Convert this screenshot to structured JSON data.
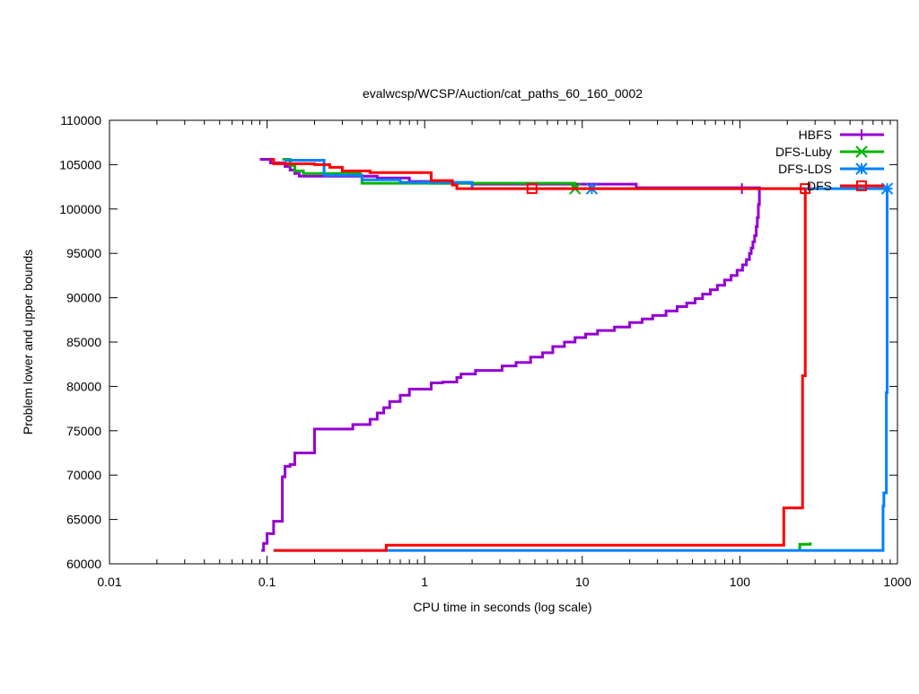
{
  "chart_data": {
    "type": "line",
    "title": "evalwcsp/WCSP/Auction/cat_paths_60_160_0002",
    "xlabel": "CPU time in seconds (log scale)",
    "ylabel": "Problem lower and upper bounds",
    "xscale": "log",
    "xlim": [
      0.01,
      1000
    ],
    "ylim": [
      60000,
      110000
    ],
    "xticks": [
      "0.01",
      "0.1",
      "1",
      "10",
      "100",
      "1000"
    ],
    "yticks": [
      "60000",
      "65000",
      "70000",
      "75000",
      "80000",
      "85000",
      "90000",
      "95000",
      "100000",
      "105000",
      "110000"
    ],
    "legend_position": "top-right",
    "grid": false,
    "series": [
      {
        "name": "HBFS",
        "color": "#9400d3",
        "marker": "plus",
        "upper": [
          [
            0.09,
            105600
          ],
          [
            0.105,
            105200
          ],
          [
            0.13,
            104800
          ],
          [
            0.14,
            104400
          ],
          [
            0.15,
            104000
          ],
          [
            0.16,
            103700
          ],
          [
            0.5,
            103500
          ],
          [
            0.8,
            103100
          ],
          [
            1.1,
            102900
          ],
          [
            2.0,
            102800
          ],
          [
            22,
            102400
          ],
          [
            133,
            102300
          ]
        ],
        "lower": [
          [
            0.092,
            61500
          ],
          [
            0.095,
            62300
          ],
          [
            0.1,
            63400
          ],
          [
            0.11,
            64800
          ],
          [
            0.125,
            69800
          ],
          [
            0.13,
            71000
          ],
          [
            0.14,
            71200
          ],
          [
            0.15,
            72500
          ],
          [
            0.2,
            75200
          ],
          [
            0.35,
            75700
          ],
          [
            0.45,
            76300
          ],
          [
            0.5,
            77000
          ],
          [
            0.55,
            77600
          ],
          [
            0.6,
            78300
          ],
          [
            0.7,
            79000
          ],
          [
            0.8,
            79700
          ],
          [
            1.1,
            80400
          ],
          [
            1.3,
            80500
          ],
          [
            1.6,
            81000
          ],
          [
            1.7,
            81400
          ],
          [
            2.1,
            81800
          ],
          [
            3.1,
            82300
          ],
          [
            3.8,
            82700
          ],
          [
            4.7,
            83300
          ],
          [
            5.6,
            83800
          ],
          [
            6.5,
            84500
          ],
          [
            7.7,
            85000
          ],
          [
            9.0,
            85500
          ],
          [
            10.5,
            85900
          ],
          [
            12.5,
            86300
          ],
          [
            16,
            86700
          ],
          [
            20,
            87200
          ],
          [
            24,
            87600
          ],
          [
            28,
            88000
          ],
          [
            34,
            88500
          ],
          [
            40,
            89000
          ],
          [
            46,
            89400
          ],
          [
            52,
            89900
          ],
          [
            58,
            90400
          ],
          [
            65,
            90900
          ],
          [
            72,
            91400
          ],
          [
            80,
            92000
          ],
          [
            88,
            92500
          ],
          [
            96,
            93100
          ],
          [
            104,
            93700
          ],
          [
            110,
            94300
          ],
          [
            115,
            95000
          ],
          [
            118,
            95600
          ],
          [
            121,
            96300
          ],
          [
            124,
            97000
          ],
          [
            127,
            98000
          ],
          [
            129,
            99000
          ],
          [
            131,
            100500
          ],
          [
            133,
            102300
          ]
        ],
        "markers": [
          [
            103,
            102300
          ]
        ]
      },
      {
        "name": "DFS-Luby",
        "color": "#00b400",
        "marker": "cross",
        "upper": [
          [
            0.125,
            105600
          ],
          [
            0.14,
            104900
          ],
          [
            0.15,
            104300
          ],
          [
            0.17,
            104000
          ],
          [
            0.39,
            103800
          ],
          [
            0.4,
            102900
          ],
          [
            9,
            102800
          ],
          [
            9,
            102300
          ]
        ],
        "lower": [
          [
            235,
            61700
          ],
          [
            240,
            62200
          ],
          [
            280,
            62400
          ]
        ],
        "markers": [
          [
            9,
            102300
          ]
        ]
      },
      {
        "name": "DFS-LDS",
        "color": "#0080ff",
        "marker": "star",
        "upper": [
          [
            0.13,
            105500
          ],
          [
            0.23,
            103800
          ],
          [
            0.4,
            103300
          ],
          [
            0.7,
            103000
          ],
          [
            2.0,
            102900
          ],
          [
            2.0,
            102300
          ],
          [
            860,
            102300
          ]
        ],
        "lower": [
          [
            0.11,
            61500
          ],
          [
            800,
            61500
          ],
          [
            810,
            66500
          ],
          [
            820,
            68000
          ],
          [
            850,
            79300
          ],
          [
            860,
            102300
          ]
        ],
        "markers": [
          [
            11.5,
            102300
          ],
          [
            860,
            102300
          ]
        ]
      },
      {
        "name": "DFS",
        "color": "#ff0000",
        "marker": "square",
        "upper": [
          [
            0.105,
            105600
          ],
          [
            0.11,
            105100
          ],
          [
            0.2,
            105000
          ],
          [
            0.25,
            104700
          ],
          [
            0.3,
            104300
          ],
          [
            0.45,
            104100
          ],
          [
            1.1,
            103200
          ],
          [
            1.5,
            102700
          ],
          [
            1.6,
            102300
          ],
          [
            260,
            102300
          ]
        ],
        "lower": [
          [
            0.11,
            61500
          ],
          [
            0.57,
            62100
          ],
          [
            190,
            66300
          ],
          [
            250,
            81200
          ],
          [
            260,
            102300
          ]
        ],
        "markers": [
          [
            4.8,
            102300
          ],
          [
            260,
            102300
          ]
        ]
      }
    ]
  }
}
